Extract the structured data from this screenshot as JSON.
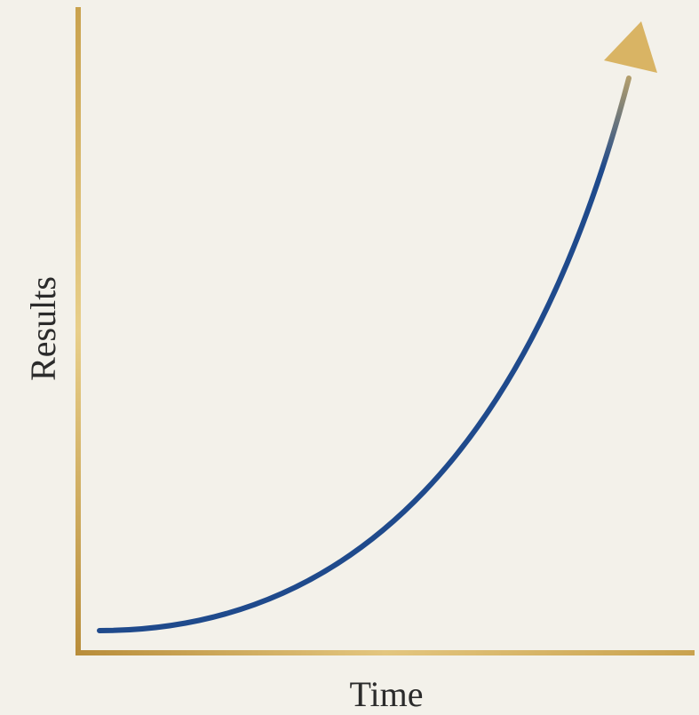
{
  "x_axis": {
    "label": "Time"
  },
  "y_axis": {
    "label": "Results"
  }
}
